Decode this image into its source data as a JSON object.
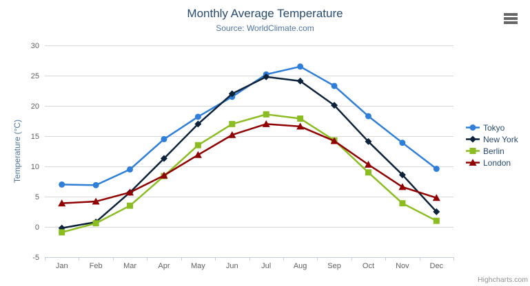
{
  "chart_data": {
    "type": "line",
    "title": "Monthly Average Temperature",
    "subtitle": "Source: WorldClimate.com",
    "categories": [
      "Jan",
      "Feb",
      "Mar",
      "Apr",
      "May",
      "Jun",
      "Jul",
      "Aug",
      "Sep",
      "Oct",
      "Nov",
      "Dec"
    ],
    "series": [
      {
        "name": "Tokyo",
        "color": "#2f7ed8",
        "marker": "circle",
        "values": [
          7.0,
          6.9,
          9.5,
          14.5,
          18.2,
          21.5,
          25.2,
          26.5,
          23.3,
          18.3,
          13.9,
          9.6
        ]
      },
      {
        "name": "New York",
        "color": "#0d233a",
        "marker": "diamond",
        "values": [
          -0.2,
          0.8,
          5.7,
          11.3,
          17.0,
          22.0,
          24.8,
          24.1,
          20.1,
          14.1,
          8.6,
          2.5
        ]
      },
      {
        "name": "Berlin",
        "color": "#8bbc21",
        "marker": "square",
        "values": [
          -0.9,
          0.6,
          3.5,
          8.4,
          13.5,
          17.0,
          18.6,
          17.9,
          14.3,
          9.0,
          3.9,
          1.0
        ]
      },
      {
        "name": "London",
        "color": "#910000",
        "marker": "triangle",
        "values": [
          3.9,
          4.2,
          5.7,
          8.5,
          11.9,
          15.2,
          17.0,
          16.6,
          14.2,
          10.3,
          6.6,
          4.8
        ]
      }
    ],
    "xlabel": "",
    "ylabel": "Temperature (°C)",
    "ylim": [
      -5,
      30
    ],
    "ytick_interval": 5,
    "grid": true,
    "legend_position": "right"
  },
  "credit": {
    "label": "Highcharts.com"
  },
  "menu": {
    "icon": "hamburger-icon"
  },
  "colors": {
    "title_text": "#274b6d",
    "subtitle_text": "#4d759e",
    "axis_label": "#606060",
    "axis_line": "#c0d0e0",
    "gridline": "#d8d8d8",
    "yaxis_title_text": "#4d759e",
    "legend_text": "#274b6d",
    "credit_text": "#909090",
    "menu_icon": "#666666"
  }
}
